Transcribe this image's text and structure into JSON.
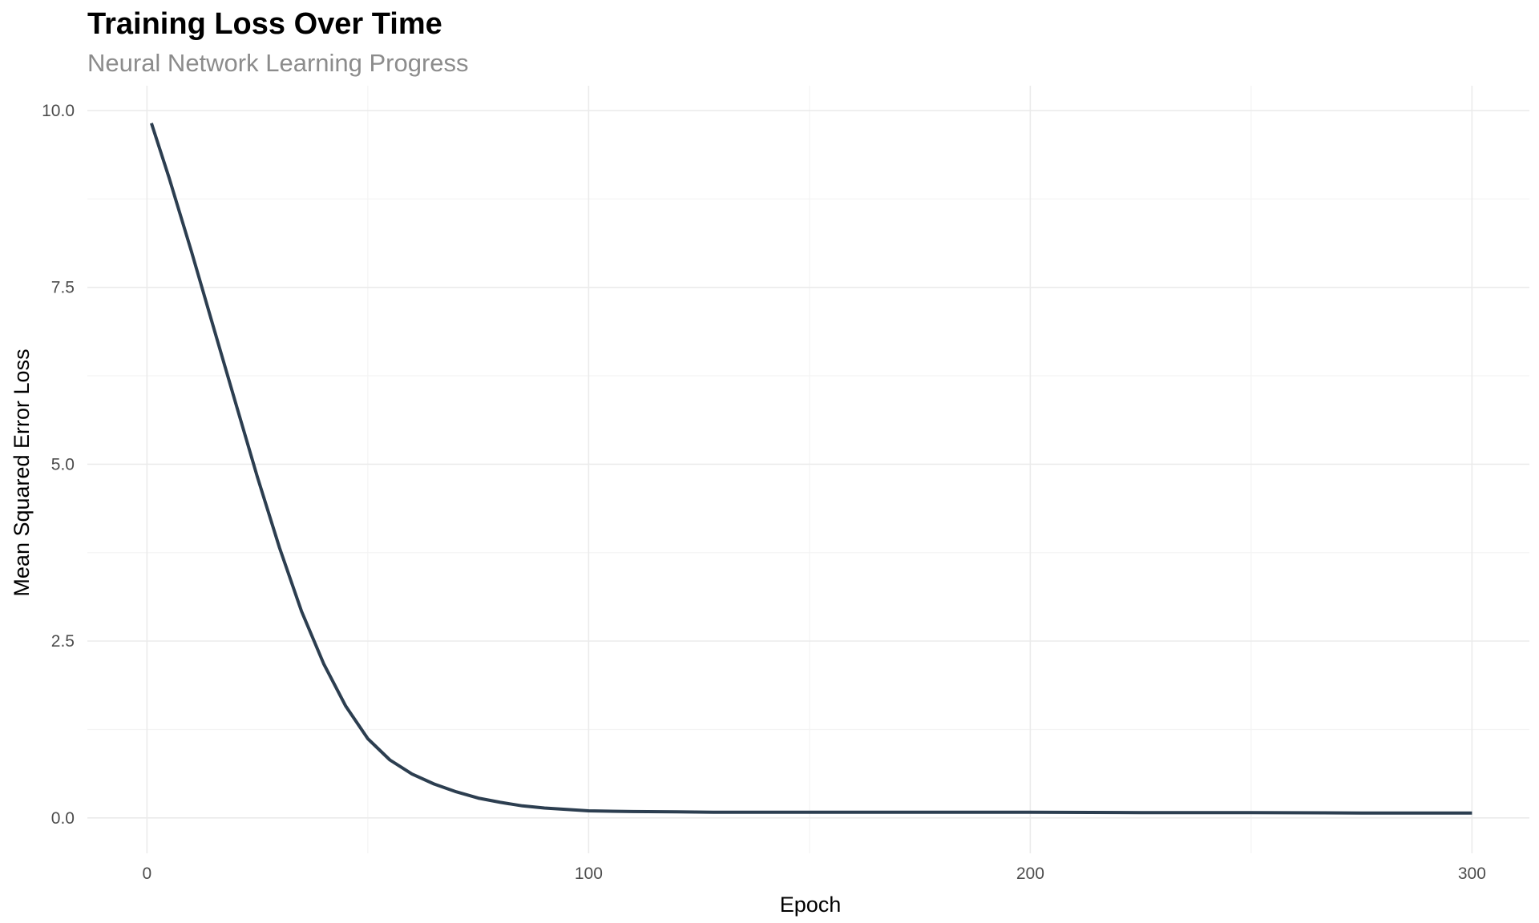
{
  "chart_data": {
    "type": "line",
    "title": "Training Loss Over Time",
    "subtitle": "Neural Network Learning Progress",
    "xlabel": "Epoch",
    "ylabel": "Mean Squared Error Loss",
    "xlim": [
      -13.5,
      313
    ],
    "ylim": [
      -0.5,
      10.35
    ],
    "x_ticks": [
      0,
      100,
      200,
      300
    ],
    "x_tick_labels": [
      "0",
      "100",
      "200",
      "300"
    ],
    "y_ticks": [
      0,
      2.5,
      5,
      7.5,
      10
    ],
    "y_tick_labels": [
      "0.0",
      "2.5",
      "5.0",
      "7.5",
      "10.0"
    ],
    "grid": true,
    "legend": "none",
    "series": [
      {
        "color": "#2c3e50",
        "x": [
          1,
          5,
          10,
          15,
          20,
          25,
          30,
          35,
          40,
          45,
          50,
          55,
          60,
          65,
          70,
          75,
          80,
          85,
          90,
          95,
          100,
          110,
          120,
          130,
          150,
          175,
          200,
          225,
          250,
          275,
          300
        ],
        "y": [
          9.82,
          9.05,
          8.02,
          6.95,
          5.88,
          4.82,
          3.82,
          2.92,
          2.18,
          1.58,
          1.12,
          0.82,
          0.62,
          0.48,
          0.37,
          0.28,
          0.22,
          0.17,
          0.14,
          0.12,
          0.1,
          0.09,
          0.085,
          0.08,
          0.08,
          0.08,
          0.08,
          0.075,
          0.075,
          0.07,
          0.07
        ]
      }
    ]
  }
}
